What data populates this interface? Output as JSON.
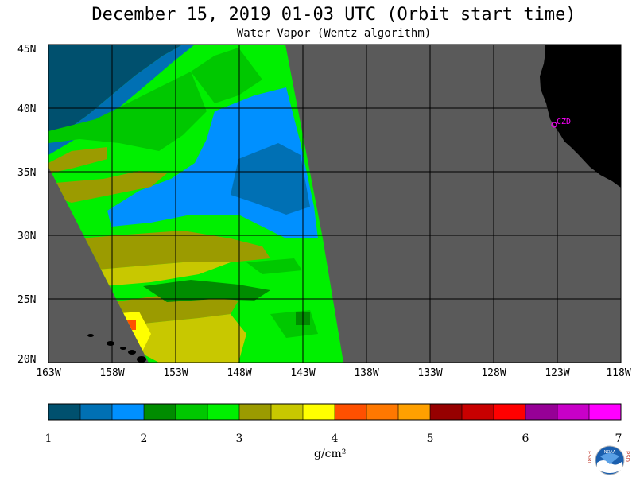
{
  "header": {
    "title": "December 15, 2019  01-03 UTC  (Orbit start time)",
    "subtitle": "Water Vapor (Wentz algorithm)"
  },
  "map": {
    "lat_labels": [
      "45N",
      "40N",
      "35N",
      "30N",
      "25N",
      "20N"
    ],
    "lon_labels": [
      "163W",
      "158W",
      "153W",
      "148W",
      "143W",
      "138W",
      "133W",
      "128W",
      "123W",
      "118W"
    ],
    "station_label": "CZD",
    "colors": {
      "land": "#000000",
      "no_data": "#5a5a5a",
      "station": "#ff00ff"
    }
  },
  "colorbar": {
    "tick_labels": [
      "1",
      "2",
      "3",
      "4",
      "5",
      "6",
      "7"
    ],
    "units_label": "g/cm²",
    "colors": [
      "#00506e",
      "#0070b4",
      "#0090ff",
      "#008c00",
      "#00c800",
      "#00f000",
      "#9b9b00",
      "#c8c800",
      "#ffff00",
      "#ff5000",
      "#ff7800",
      "#ffa000",
      "#960000",
      "#c80000",
      "#ff0000",
      "#960096",
      "#c800c8",
      "#ff00ff"
    ]
  },
  "logo": {
    "left_letters": "ESRL",
    "right_letters": "PSD",
    "center_text": "NOAA"
  }
}
